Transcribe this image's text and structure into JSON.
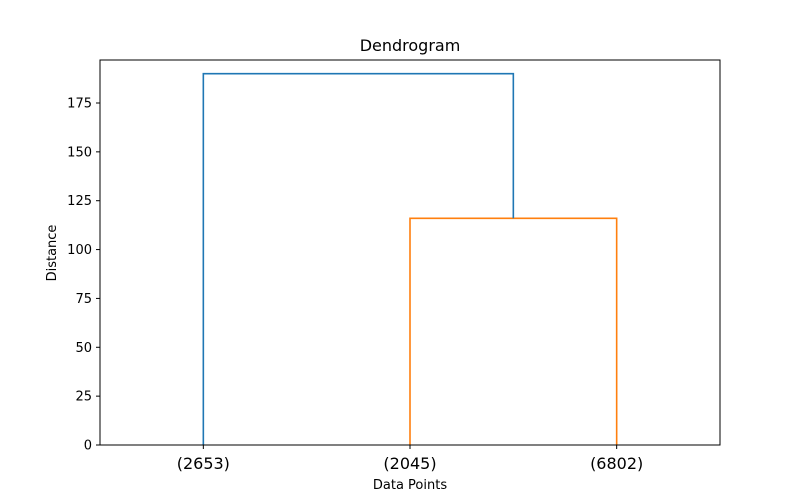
{
  "chart_data": {
    "type": "dendrogram",
    "title": "Dendrogram",
    "xlabel": "Data Points",
    "ylabel": "Distance",
    "ylim": [
      0,
      197
    ],
    "yticks": [
      0,
      25,
      50,
      75,
      100,
      125,
      150,
      175
    ],
    "leaves": [
      "(2653)",
      "(2045)",
      "(6802)"
    ],
    "links": [
      {
        "name": "link-orange",
        "left": 1,
        "right": 2,
        "left_height": 0,
        "right_height": 0,
        "height": 116,
        "color": "#ff7f0e"
      },
      {
        "name": "link-blue",
        "left": 0,
        "right": "link-orange",
        "left_height": 0,
        "right_height": 116,
        "height": 190,
        "color": "#1f77b4"
      }
    ],
    "grid": false
  }
}
